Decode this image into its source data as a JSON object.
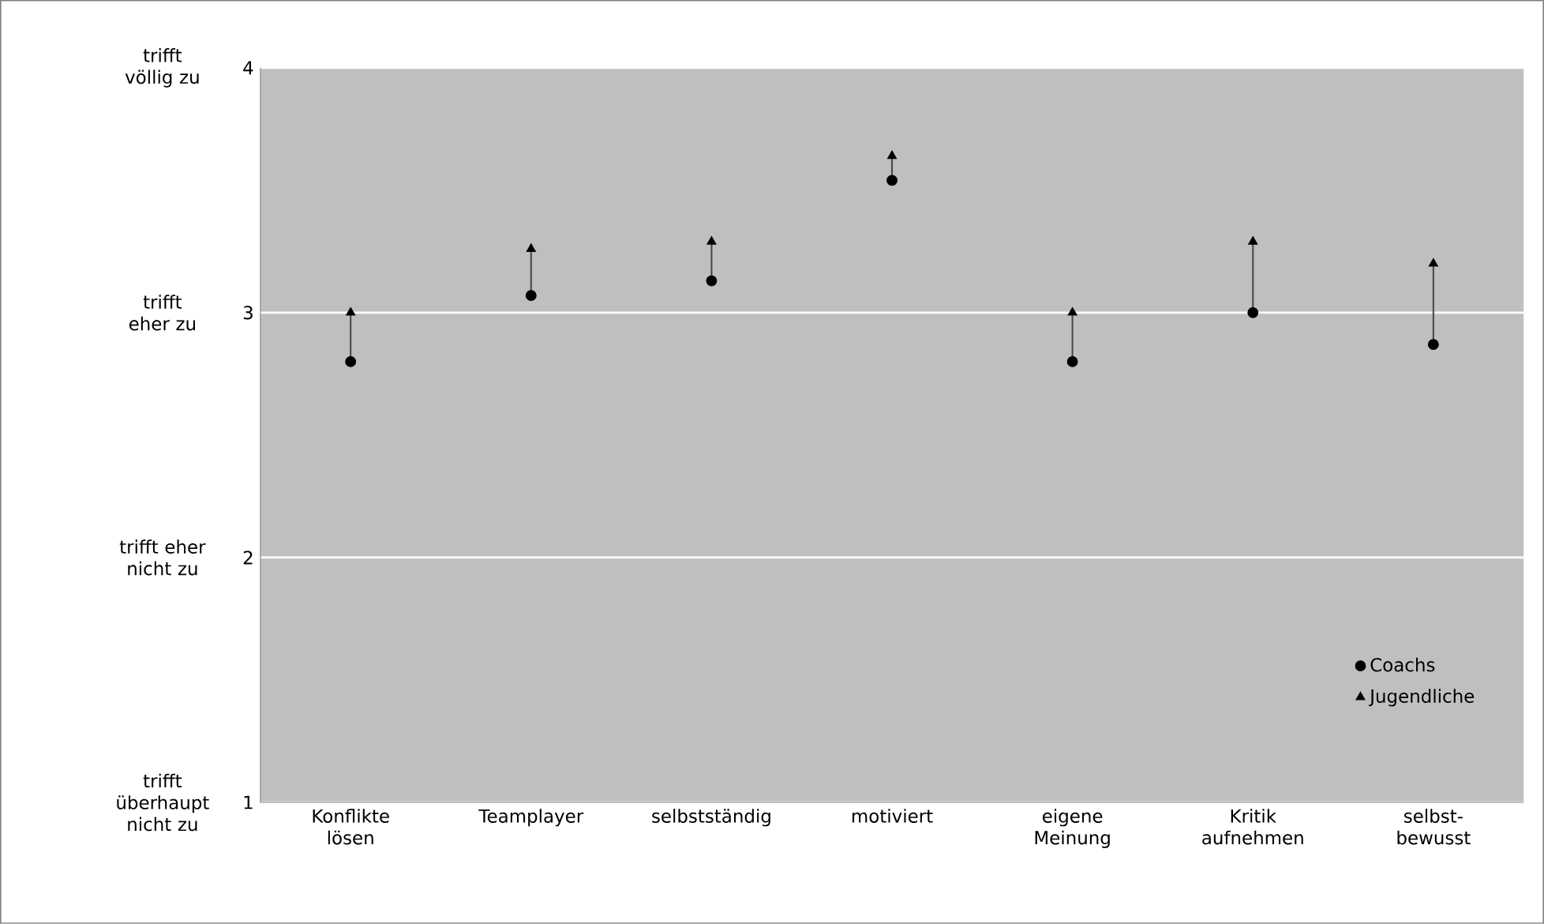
{
  "chart_data": {
    "type": "scatter",
    "categories": [
      "Konflikte lösen",
      "Teamplayer",
      "selbstständig",
      "motiviert",
      "eigene Meinung",
      "Kritik aufnehmen",
      "selbst-bewusst"
    ],
    "series": [
      {
        "name": "Coachs",
        "color": "#000000",
        "marker": "circle",
        "values": [
          2.8,
          3.07,
          3.13,
          3.54,
          2.8,
          3.0,
          2.87
        ]
      },
      {
        "name": "Jugendliche",
        "color": "#000000",
        "marker": "triangle",
        "values": [
          3.0,
          3.26,
          3.29,
          3.64,
          3.0,
          3.29,
          3.2
        ]
      }
    ],
    "ylim": [
      1,
      4
    ],
    "yticks": [
      1,
      2,
      3,
      4
    ],
    "annotations": [
      "trifft überhaupt nicht zu",
      "trifft eher nicht zu",
      "trifft eher zu",
      "trifft völlig zu"
    ],
    "grid": "y",
    "legend": "bottom right"
  }
}
